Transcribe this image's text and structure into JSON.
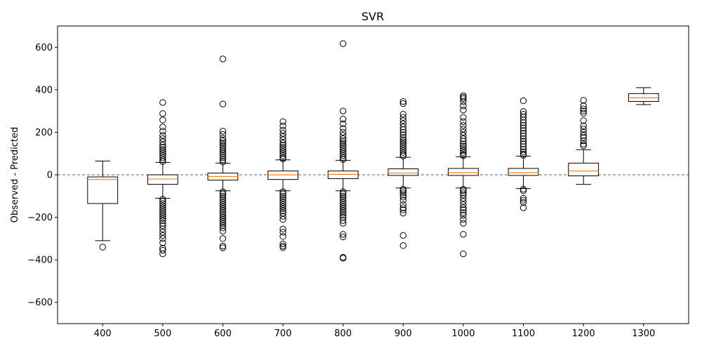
{
  "chart_data": {
    "type": "box",
    "title": "SVR",
    "xlabel": "",
    "ylabel": "Observed - Predicted",
    "ylim": [
      -700,
      700
    ],
    "yticks": [
      -600,
      -400,
      -200,
      0,
      200,
      400,
      600
    ],
    "reference_line": {
      "y": 0,
      "style": "dashed",
      "color": "#808080"
    },
    "colors": {
      "box": "#000000",
      "median": "#ff7f0e",
      "flier": "#000000"
    },
    "categories": [
      "400",
      "500",
      "600",
      "700",
      "800",
      "900",
      "1000",
      "1100",
      "1200",
      "1300"
    ],
    "boxes": [
      {
        "label": "400",
        "whislo": -310,
        "q1": -135,
        "med": -22,
        "q3": -10,
        "whishi": 65,
        "fliers": [
          -340
        ]
      },
      {
        "label": "500",
        "whislo": -110,
        "q1": -45,
        "med": -20,
        "q3": 0,
        "whishi": 58,
        "fliers": [
          340,
          288,
          258,
          225,
          205,
          185,
          170,
          155,
          140,
          130,
          120,
          110,
          100,
          90,
          80,
          70,
          62,
          -115,
          -125,
          -135,
          -145,
          -155,
          -165,
          -175,
          -185,
          -195,
          -205,
          -215,
          -228,
          -240,
          -255,
          -270,
          -285,
          -300,
          -320,
          -345,
          -355,
          -372
        ]
      },
      {
        "label": "600",
        "whislo": -75,
        "q1": -25,
        "med": -8,
        "q3": 8,
        "whishi": 55,
        "fliers": [
          545,
          333,
          205,
          190,
          172,
          160,
          150,
          140,
          130,
          120,
          110,
          100,
          90,
          80,
          70,
          60,
          -80,
          -90,
          -100,
          -110,
          -120,
          -130,
          -140,
          -150,
          -160,
          -170,
          -180,
          -190,
          -200,
          -210,
          -220,
          -230,
          -240,
          -250,
          -265,
          -300,
          -335,
          -343
        ]
      },
      {
        "label": "700",
        "whislo": -75,
        "q1": -22,
        "med": 0,
        "q3": 18,
        "whishi": 70,
        "fliers": [
          250,
          230,
          210,
          195,
          180,
          165,
          150,
          140,
          130,
          120,
          110,
          100,
          90,
          80,
          75,
          -80,
          -90,
          -100,
          -110,
          -120,
          -130,
          -140,
          -150,
          -160,
          -170,
          -180,
          -195,
          -210,
          -255,
          -270,
          -290,
          -325,
          -335,
          -342
        ]
      },
      {
        "label": "800",
        "whislo": -75,
        "q1": -18,
        "med": 2,
        "q3": 18,
        "whishi": 68,
        "fliers": [
          617,
          300,
          262,
          240,
          218,
          200,
          185,
          170,
          160,
          150,
          140,
          130,
          120,
          110,
          100,
          90,
          80,
          72,
          -80,
          -90,
          -100,
          -110,
          -120,
          -130,
          -140,
          -150,
          -160,
          -170,
          -180,
          -190,
          -200,
          -215,
          -228,
          -280,
          -292,
          -388,
          -392
        ]
      },
      {
        "label": "900",
        "whislo": -62,
        "q1": -3,
        "med": 8,
        "q3": 28,
        "whishi": 82,
        "fliers": [
          345,
          335,
          285,
          270,
          255,
          240,
          225,
          212,
          200,
          188,
          175,
          165,
          155,
          145,
          135,
          125,
          115,
          105,
          95,
          88,
          -68,
          -75,
          -85,
          -95,
          -105,
          -120,
          -140,
          -155,
          -165,
          -180,
          -285,
          -333
        ]
      },
      {
        "label": "1000",
        "whislo": -62,
        "q1": -3,
        "med": 10,
        "q3": 30,
        "whishi": 85,
        "fliers": [
          372,
          365,
          358,
          345,
          325,
          305,
          270,
          250,
          232,
          215,
          200,
          185,
          170,
          158,
          145,
          135,
          125,
          115,
          105,
          95,
          90,
          -68,
          -75,
          -85,
          -95,
          -110,
          -125,
          -140,
          -155,
          -165,
          -178,
          -190,
          -210,
          -228,
          -280,
          -372
        ]
      },
      {
        "label": "1100",
        "whislo": -65,
        "q1": -3,
        "med": 10,
        "q3": 30,
        "whishi": 88,
        "fliers": [
          348,
          298,
          285,
          272,
          258,
          245,
          232,
          220,
          208,
          195,
          182,
          170,
          158,
          145,
          132,
          120,
          108,
          98,
          92,
          -68,
          -75,
          -110,
          -120,
          -130,
          -155
        ]
      },
      {
        "label": "1200",
        "whislo": -45,
        "q1": -5,
        "med": 18,
        "q3": 55,
        "whishi": 118,
        "fliers": [
          350,
          325,
          310,
          300,
          290,
          255,
          230,
          215,
          200,
          185,
          175,
          160,
          145,
          137
        ]
      },
      {
        "label": "1300",
        "whislo": 330,
        "q1": 345,
        "med": 362,
        "q3": 382,
        "whishi": 410,
        "fliers": []
      }
    ]
  }
}
